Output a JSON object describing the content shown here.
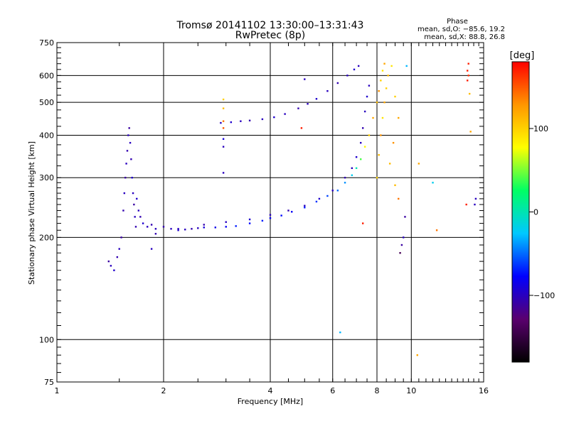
{
  "chart_data": {
    "type": "scatter",
    "title": "Tromsø 20141102 13:30:00–13:31:43",
    "subtitle": "RwPretec (8p)",
    "xlabel": "Frequency [MHz]",
    "ylabel": "Stationary phase Virtual Height [km]",
    "x_scale": "log",
    "y_scale": "log",
    "xlim": [
      1,
      16
    ],
    "ylim": [
      75,
      750
    ],
    "x_ticks": [
      "1",
      "2",
      "4",
      "6",
      "8",
      "10",
      "16"
    ],
    "y_ticks": [
      "750",
      "600",
      "500",
      "400",
      "300",
      "200",
      "100",
      "75"
    ],
    "grid": true,
    "legend": {
      "phase_title": "Phase",
      "line1": "mean, sd,O: −85.6, 19.2",
      "line2": "mean, sd,X:  88.8, 26.8"
    },
    "colorbar": {
      "label": "[deg]",
      "range": [
        -180,
        180
      ],
      "ticks": [
        "100",
        "0",
        "−100"
      ],
      "colors": [
        "#000000",
        "#5a006e",
        "#0000ff",
        "#00c8ff",
        "#00ff64",
        "#ffff00",
        "#ff9600",
        "#ff0000"
      ]
    },
    "series": [
      {
        "points": [
          [
            1.4,
            170,
            -110
          ],
          [
            1.42,
            165,
            -100
          ],
          [
            1.45,
            160,
            -95
          ],
          [
            1.48,
            175,
            -105
          ],
          [
            1.5,
            185,
            -100
          ],
          [
            1.52,
            200,
            -110
          ],
          [
            1.54,
            240,
            -105
          ],
          [
            1.55,
            270,
            -100
          ],
          [
            1.56,
            300,
            -110
          ],
          [
            1.57,
            330,
            -100
          ],
          [
            1.58,
            360,
            -105
          ],
          [
            1.59,
            400,
            -100
          ],
          [
            1.6,
            420,
            -110
          ],
          [
            1.61,
            380,
            -100
          ],
          [
            1.62,
            340,
            -105
          ],
          [
            1.63,
            300,
            -95
          ],
          [
            1.64,
            270,
            -100
          ],
          [
            1.65,
            250,
            -110
          ],
          [
            1.66,
            230,
            -100
          ],
          [
            1.67,
            215,
            -105
          ],
          [
            1.68,
            260,
            -95
          ],
          [
            1.7,
            240,
            -100
          ],
          [
            1.72,
            230,
            -105
          ],
          [
            1.75,
            220,
            -95
          ],
          [
            1.8,
            215,
            -100
          ],
          [
            1.85,
            218,
            -105
          ],
          [
            1.9,
            212,
            -100
          ],
          [
            2.0,
            215,
            -105
          ],
          [
            2.1,
            212,
            -100
          ],
          [
            2.2,
            210,
            -95
          ],
          [
            2.3,
            211,
            -100
          ],
          [
            2.4,
            212,
            -105
          ],
          [
            2.5,
            213,
            -100
          ],
          [
            2.6,
            214,
            -90
          ],
          [
            2.8,
            214,
            -85
          ],
          [
            3.0,
            215,
            -80
          ],
          [
            3.2,
            216,
            -70
          ],
          [
            3.5,
            220,
            -75
          ],
          [
            3.8,
            224,
            -70
          ],
          [
            4.0,
            228,
            -80
          ],
          [
            4.3,
            232,
            -75
          ],
          [
            4.6,
            238,
            -80
          ],
          [
            5.0,
            245,
            -70
          ],
          [
            5.4,
            255,
            -65
          ],
          [
            5.8,
            265,
            -60
          ],
          [
            6.2,
            275,
            -50
          ],
          [
            6.5,
            290,
            -40
          ],
          [
            6.8,
            305,
            -20
          ],
          [
            7.0,
            320,
            0
          ],
          [
            7.2,
            340,
            40
          ],
          [
            7.4,
            370,
            80
          ],
          [
            7.6,
            400,
            100
          ],
          [
            7.8,
            450,
            120
          ],
          [
            8.0,
            500,
            110
          ],
          [
            8.1,
            540,
            130
          ],
          [
            8.2,
            580,
            100
          ],
          [
            8.3,
            620,
            90
          ],
          [
            8.4,
            650,
            120
          ]
        ]
      },
      {
        "points": [
          [
            2.9,
            435,
            -100
          ],
          [
            3.1,
            437,
            -95
          ],
          [
            3.3,
            440,
            -100
          ],
          [
            3.5,
            442,
            -105
          ],
          [
            3.8,
            446,
            -100
          ],
          [
            4.1,
            452,
            -95
          ],
          [
            4.4,
            462,
            -100
          ],
          [
            4.8,
            480,
            -105
          ],
          [
            5.1,
            495,
            -100
          ],
          [
            5.4,
            512,
            -95
          ],
          [
            5.8,
            540,
            -100
          ],
          [
            6.2,
            570,
            -105
          ],
          [
            6.6,
            600,
            -100
          ],
          [
            6.9,
            625,
            -95
          ],
          [
            7.1,
            640,
            -100
          ]
        ]
      },
      {
        "points": [
          [
            1.9,
            205,
            -105
          ],
          [
            2.2,
            212,
            -100
          ],
          [
            2.6,
            218,
            -105
          ],
          [
            3.0,
            222,
            -100
          ],
          [
            3.5,
            226,
            -95
          ],
          [
            4.0,
            233,
            -100
          ],
          [
            4.5,
            240,
            -105
          ],
          [
            5.0,
            248,
            -100
          ],
          [
            5.5,
            260,
            -95
          ],
          [
            6.0,
            275,
            -100
          ],
          [
            6.5,
            300,
            -105
          ],
          [
            6.8,
            320,
            -100
          ],
          [
            7.0,
            345,
            -95
          ],
          [
            7.2,
            380,
            -100
          ],
          [
            7.3,
            420,
            -105
          ],
          [
            7.4,
            470,
            -100
          ],
          [
            7.5,
            520,
            -95
          ],
          [
            7.6,
            560,
            -100
          ]
        ]
      },
      {
        "points": [
          [
            8.0,
            300,
            100
          ],
          [
            8.1,
            350,
            110
          ],
          [
            8.2,
            400,
            130
          ],
          [
            8.3,
            450,
            90
          ],
          [
            8.4,
            500,
            120
          ],
          [
            8.5,
            550,
            100
          ],
          [
            8.6,
            600,
            110
          ],
          [
            8.8,
            640,
            90
          ],
          [
            9.0,
            520,
            100
          ],
          [
            9.2,
            450,
            120
          ],
          [
            8.9,
            380,
            130
          ],
          [
            8.7,
            330,
            110
          ]
        ]
      },
      {
        "points": [
          [
            2.95,
            510,
            100
          ],
          [
            2.95,
            480,
            110
          ],
          [
            2.95,
            440,
            140
          ],
          [
            2.95,
            420,
            150
          ],
          [
            2.95,
            390,
            -90
          ],
          [
            2.95,
            370,
            -100
          ],
          [
            2.95,
            310,
            -100
          ],
          [
            1.85,
            185,
            -100
          ],
          [
            5.0,
            585,
            -100
          ],
          [
            4.9,
            420,
            170
          ],
          [
            7.3,
            220,
            170
          ],
          [
            9.0,
            285,
            110
          ],
          [
            9.2,
            260,
            140
          ],
          [
            9.5,
            200,
            -100
          ],
          [
            9.4,
            190,
            -110
          ],
          [
            9.3,
            180,
            -140
          ],
          [
            9.6,
            230,
            -110
          ],
          [
            10.5,
            330,
            120
          ],
          [
            11.5,
            290,
            -20
          ],
          [
            11.8,
            210,
            140
          ],
          [
            14.5,
            650,
            170
          ],
          [
            14.4,
            620,
            170
          ],
          [
            14.5,
            600,
            165
          ],
          [
            14.4,
            580,
            170
          ],
          [
            14.6,
            530,
            110
          ],
          [
            14.7,
            410,
            120
          ],
          [
            14.3,
            250,
            170
          ],
          [
            15.2,
            260,
            -100
          ],
          [
            15.1,
            250,
            -100
          ],
          [
            6.3,
            105,
            -30
          ],
          [
            10.4,
            90,
            120
          ],
          [
            9.7,
            640,
            -30
          ]
        ]
      }
    ]
  }
}
